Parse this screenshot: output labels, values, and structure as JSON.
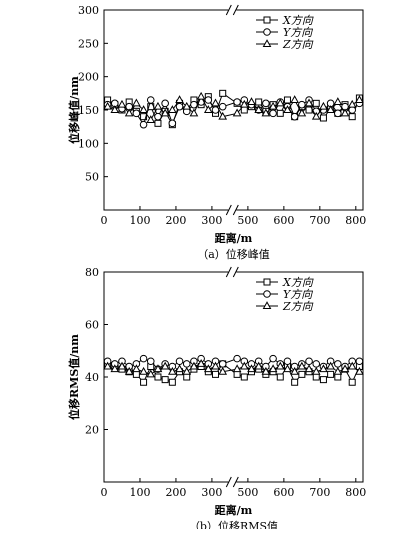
{
  "chart_data": [
    {
      "type": "line",
      "caption": "（a）位移峰值",
      "xlabel": "距离/m",
      "ylabel": "位移峰值/nm",
      "x": [
        10,
        30,
        50,
        70,
        90,
        110,
        130,
        150,
        170,
        190,
        210,
        230,
        250,
        270,
        290,
        310,
        330,
        470,
        490,
        510,
        530,
        550,
        570,
        590,
        610,
        630,
        650,
        670,
        690,
        710,
        730,
        750,
        770,
        790,
        810
      ],
      "xlim": [
        0,
        820
      ],
      "x_break": [
        340,
        440
      ],
      "xticks": [
        0,
        100,
        200,
        300,
        500,
        600,
        700,
        800
      ],
      "ylim": [
        0,
        300
      ],
      "yticks": [
        50,
        100,
        150,
        200,
        250,
        300
      ],
      "legend": "upper right",
      "series": [
        {
          "name": "X方向",
          "color": "#000000",
          "marker": "square",
          "values": [
            165,
            158,
            150,
            162,
            148,
            140,
            155,
            130,
            148,
            128,
            160,
            150,
            165,
            158,
            170,
            145,
            175,
            160,
            150,
            155,
            162,
            148,
            158,
            145,
            165,
            140,
            155,
            150,
            160,
            138,
            152,
            145,
            158,
            140,
            168
          ]
        },
        {
          "name": "Y方向",
          "color": "#000000",
          "marker": "circle",
          "values": [
            158,
            160,
            152,
            155,
            145,
            128,
            165,
            140,
            160,
            130,
            155,
            148,
            158,
            162,
            165,
            150,
            155,
            162,
            165,
            158,
            150,
            160,
            145,
            162,
            155,
            140,
            158,
            165,
            148,
            150,
            160,
            145,
            155,
            150,
            160
          ]
        },
        {
          "name": "Z方向",
          "color": "#000000",
          "marker": "triangle",
          "values": [
            155,
            150,
            158,
            145,
            160,
            150,
            135,
            155,
            145,
            150,
            165,
            155,
            145,
            170,
            150,
            160,
            140,
            145,
            158,
            162,
            150,
            145,
            155,
            160,
            150,
            165,
            145,
            160,
            140,
            155,
            150,
            162,
            145,
            158,
            165
          ]
        }
      ]
    },
    {
      "type": "line",
      "caption": "（b）位移RMS值",
      "xlabel": "距离/m",
      "ylabel": "位移RMS值/nm",
      "x": [
        10,
        30,
        50,
        70,
        90,
        110,
        130,
        150,
        170,
        190,
        210,
        230,
        250,
        270,
        290,
        310,
        330,
        470,
        490,
        510,
        530,
        550,
        570,
        590,
        610,
        630,
        650,
        670,
        690,
        710,
        730,
        750,
        770,
        790,
        810
      ],
      "xlim": [
        0,
        820
      ],
      "x_break": [
        340,
        440
      ],
      "xticks": [
        0,
        100,
        200,
        300,
        500,
        600,
        700,
        800
      ],
      "ylim": [
        0,
        80
      ],
      "yticks": [
        20,
        40,
        60,
        80
      ],
      "legend": "upper right",
      "series": [
        {
          "name": "X方向",
          "color": "#000000",
          "marker": "square",
          "values": [
            45,
            44,
            43,
            42,
            41,
            38,
            44,
            40,
            39,
            38,
            42,
            40,
            43,
            44,
            42,
            41,
            45,
            41,
            40,
            42,
            43,
            41,
            42,
            40,
            44,
            38,
            41,
            42,
            40,
            39,
            41,
            40,
            43,
            38,
            44
          ]
        },
        {
          "name": "Y方向",
          "color": "#000000",
          "marker": "circle",
          "values": [
            46,
            45,
            46,
            44,
            45,
            47,
            46,
            43,
            45,
            44,
            46,
            45,
            46,
            47,
            45,
            46,
            45,
            47,
            46,
            45,
            46,
            44,
            47,
            45,
            46,
            44,
            45,
            46,
            45,
            44,
            46,
            45,
            44,
            46,
            46
          ]
        },
        {
          "name": "Z方向",
          "color": "#000000",
          "marker": "triangle",
          "values": [
            44,
            43,
            44,
            42,
            43,
            42,
            41,
            43,
            44,
            42,
            43,
            42,
            44,
            45,
            43,
            44,
            42,
            43,
            44,
            43,
            44,
            42,
            43,
            44,
            43,
            42,
            44,
            43,
            42,
            43,
            44,
            42,
            43,
            44,
            42
          ]
        }
      ]
    }
  ]
}
